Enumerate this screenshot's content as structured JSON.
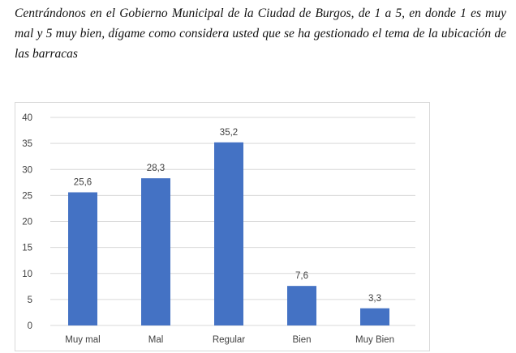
{
  "question": "Centrándonos en el Gobierno Municipal de la Ciudad de Burgos, de 1 a 5, en donde 1 es muy mal y 5 muy bien, dígame como considera usted que se ha gestionado el tema de la ubicación de las barracas",
  "chart_data": {
    "type": "bar",
    "title": "",
    "xlabel": "",
    "ylabel": "",
    "categories": [
      "Muy mal",
      "Mal",
      "Regular",
      "Bien",
      "Muy Bien"
    ],
    "values": [
      25.6,
      28.3,
      35.2,
      7.6,
      3.3
    ],
    "value_labels": [
      "25,6",
      "28,3",
      "35,2",
      "7,6",
      "3,3"
    ],
    "ylim": [
      0,
      40
    ],
    "yticks": [
      0,
      5,
      10,
      15,
      20,
      25,
      30,
      35,
      40
    ],
    "grid": true,
    "legend": "none",
    "bar_color": "#4472C4"
  }
}
